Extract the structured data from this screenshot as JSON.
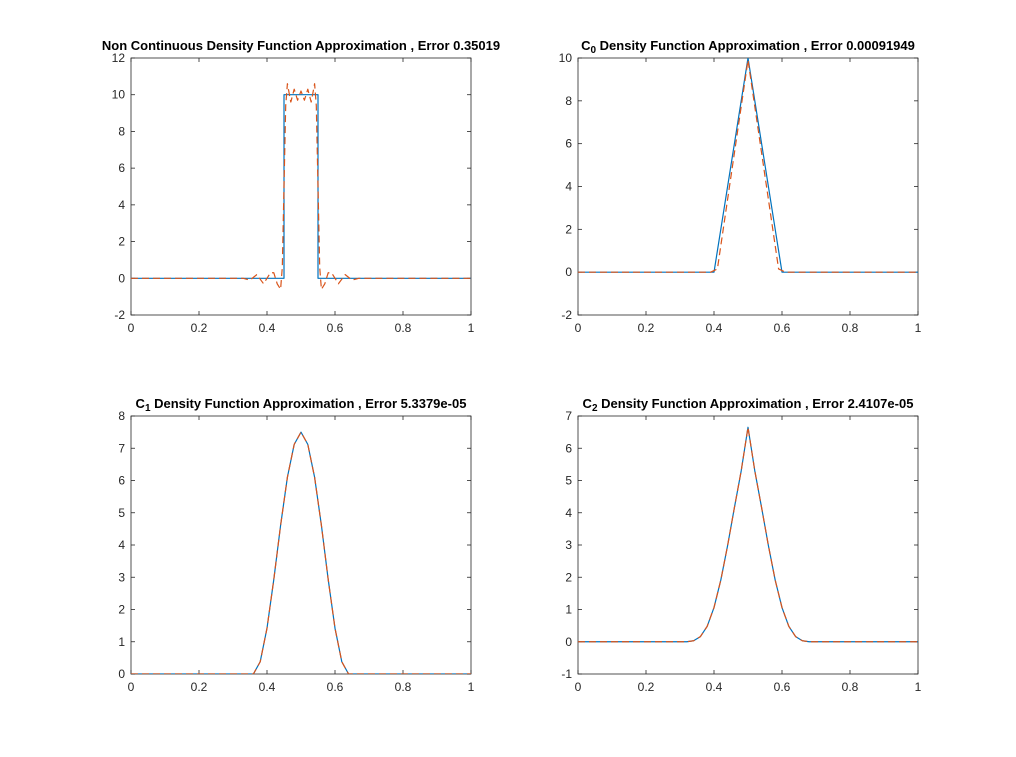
{
  "figure": {
    "background": "#ffffff",
    "axes_color": "#262626",
    "colors": {
      "exact": "#0072BD",
      "approx": "#D95319"
    }
  },
  "chart_data": [
    {
      "type": "line",
      "title": "Non Continuous Density Function Approximation , Error 0.35019",
      "title_parts": [
        {
          "text": "Non Continuous Density Function Approximation , Error 0.35019"
        }
      ],
      "xlim": [
        0,
        1
      ],
      "ylim": [
        -2,
        12
      ],
      "xticks": [
        0,
        0.2,
        0.4,
        0.6,
        0.8,
        1
      ],
      "xtick_labels": [
        "0",
        "0.2",
        "0.4",
        "0.6",
        "0.8",
        "1"
      ],
      "yticks": [
        -2,
        0,
        2,
        4,
        6,
        8,
        10,
        12
      ],
      "ytick_labels": [
        "-2",
        "0",
        "2",
        "4",
        "6",
        "8",
        "10",
        "12"
      ],
      "grid": false,
      "legend": false,
      "series": [
        {
          "style": "solid",
          "color": "#0072BD",
          "x": [
            0,
            0.45,
            0.45,
            0.55,
            0.55,
            1
          ],
          "y": [
            0,
            0,
            10,
            10,
            0,
            0
          ]
        },
        {
          "style": "dashed",
          "color": "#D95319",
          "x": [
            0,
            0.33,
            0.35,
            0.37,
            0.39,
            0.41,
            0.42,
            0.43,
            0.44,
            0.445,
            0.45,
            0.455,
            0.46,
            0.47,
            0.48,
            0.49,
            0.5,
            0.51,
            0.52,
            0.53,
            0.54,
            0.545,
            0.55,
            0.555,
            0.56,
            0.57,
            0.58,
            0.59,
            0.61,
            0.63,
            0.65,
            0.67,
            1
          ],
          "y": [
            0,
            0,
            -0.1,
            0.2,
            -0.3,
            0.3,
            0.3,
            -0.3,
            -0.6,
            0.6,
            5,
            9.4,
            10.6,
            9.6,
            10.3,
            9.7,
            10.2,
            9.7,
            10.3,
            9.6,
            10.6,
            9.4,
            5,
            0.6,
            -0.6,
            -0.3,
            0.3,
            0.3,
            -0.3,
            0.2,
            -0.1,
            0,
            0
          ]
        }
      ]
    },
    {
      "type": "line",
      "title": "C0 Density Function Approximation , Error 0.00091949",
      "title_parts": [
        {
          "text": "C"
        },
        {
          "text": "0",
          "sub": true
        },
        {
          "text": " Density Function Approximation , Error 0.00091949"
        }
      ],
      "xlim": [
        0,
        1
      ],
      "ylim": [
        -2,
        10
      ],
      "xticks": [
        0,
        0.2,
        0.4,
        0.6,
        0.8,
        1
      ],
      "xtick_labels": [
        "0",
        "0.2",
        "0.4",
        "0.6",
        "0.8",
        "1"
      ],
      "yticks": [
        -2,
        0,
        2,
        4,
        6,
        8,
        10
      ],
      "ytick_labels": [
        "-2",
        "0",
        "2",
        "4",
        "6",
        "8",
        "10"
      ],
      "grid": false,
      "legend": false,
      "series": [
        {
          "style": "solid",
          "color": "#0072BD",
          "x": [
            0,
            0.4,
            0.5,
            0.6,
            1
          ],
          "y": [
            0,
            0,
            10,
            0,
            0
          ]
        },
        {
          "style": "dashed",
          "color": "#D95319",
          "x": [
            0,
            0.39,
            0.41,
            0.5,
            0.59,
            0.61,
            1
          ],
          "y": [
            0,
            0,
            0.15,
            9.9,
            0.15,
            0,
            0
          ]
        }
      ]
    },
    {
      "type": "line",
      "title": "C1 Density Function Approximation , Error 5.3379e-05",
      "title_parts": [
        {
          "text": "C"
        },
        {
          "text": "1",
          "sub": true
        },
        {
          "text": " Density Function Approximation , Error 5.3379e-05"
        }
      ],
      "xlim": [
        0,
        1
      ],
      "ylim": [
        0,
        8
      ],
      "xticks": [
        0,
        0.2,
        0.4,
        0.6,
        0.8,
        1
      ],
      "xtick_labels": [
        "0",
        "0.2",
        "0.4",
        "0.6",
        "0.8",
        "1"
      ],
      "yticks": [
        0,
        1,
        2,
        3,
        4,
        5,
        6,
        7,
        8
      ],
      "ytick_labels": [
        "0",
        "1",
        "2",
        "3",
        "4",
        "5",
        "6",
        "7",
        "8"
      ],
      "grid": false,
      "legend": false,
      "series": [
        {
          "style": "solid",
          "color": "#0072BD",
          "x": [
            0,
            0.36,
            0.38,
            0.4,
            0.42,
            0.44,
            0.46,
            0.48,
            0.5,
            0.52,
            0.54,
            0.56,
            0.58,
            0.6,
            0.62,
            0.64,
            1
          ],
          "y": [
            0,
            0,
            0.38,
            1.42,
            2.93,
            4.61,
            6.1,
            7.12,
            7.5,
            7.12,
            6.1,
            4.61,
            2.93,
            1.42,
            0.38,
            0,
            0
          ]
        },
        {
          "style": "dashed",
          "color": "#D95319",
          "x": [
            0,
            0.36,
            0.38,
            0.4,
            0.42,
            0.44,
            0.46,
            0.48,
            0.5,
            0.52,
            0.54,
            0.56,
            0.58,
            0.6,
            0.62,
            0.64,
            1
          ],
          "y": [
            0,
            0,
            0.38,
            1.42,
            2.93,
            4.61,
            6.1,
            7.12,
            7.5,
            7.12,
            6.1,
            4.61,
            2.93,
            1.42,
            0.38,
            0,
            0
          ]
        }
      ]
    },
    {
      "type": "line",
      "title": "C2 Density Function Approximation , Error 2.4107e-05",
      "title_parts": [
        {
          "text": "C"
        },
        {
          "text": "2",
          "sub": true
        },
        {
          "text": " Density Function Approximation , Error 2.4107e-05"
        }
      ],
      "xlim": [
        0,
        1
      ],
      "ylim": [
        -1,
        7
      ],
      "xticks": [
        0,
        0.2,
        0.4,
        0.6,
        0.8,
        1
      ],
      "xtick_labels": [
        "0",
        "0.2",
        "0.4",
        "0.6",
        "0.8",
        "1"
      ],
      "yticks": [
        -1,
        0,
        1,
        2,
        3,
        4,
        5,
        6,
        7
      ],
      "ytick_labels": [
        "-1",
        "0",
        "1",
        "2",
        "3",
        "4",
        "5",
        "6",
        "7"
      ],
      "grid": false,
      "legend": false,
      "series": [
        {
          "style": "solid",
          "color": "#0072BD",
          "x": [
            0,
            0.32,
            0.34,
            0.36,
            0.38,
            0.4,
            0.42,
            0.44,
            0.46,
            0.48,
            0.5,
            0.52,
            0.54,
            0.56,
            0.58,
            0.6,
            0.62,
            0.64,
            0.66,
            0.68,
            1
          ],
          "y": [
            0,
            0,
            0.03,
            0.16,
            0.48,
            1.06,
            1.91,
            2.98,
            4.16,
            5.3,
            6.65,
            5.3,
            4.16,
            2.98,
            1.91,
            1.06,
            0.48,
            0.16,
            0.03,
            0,
            0
          ]
        },
        {
          "style": "dashed",
          "color": "#D95319",
          "x": [
            0,
            0.32,
            0.34,
            0.36,
            0.38,
            0.4,
            0.42,
            0.44,
            0.46,
            0.48,
            0.5,
            0.52,
            0.54,
            0.56,
            0.58,
            0.6,
            0.62,
            0.64,
            0.66,
            0.68,
            1
          ],
          "y": [
            0,
            0,
            0.03,
            0.16,
            0.48,
            1.06,
            1.91,
            2.98,
            4.16,
            5.3,
            6.65,
            5.3,
            4.16,
            2.98,
            1.91,
            1.06,
            0.48,
            0.16,
            0.03,
            0,
            0
          ]
        }
      ]
    }
  ]
}
